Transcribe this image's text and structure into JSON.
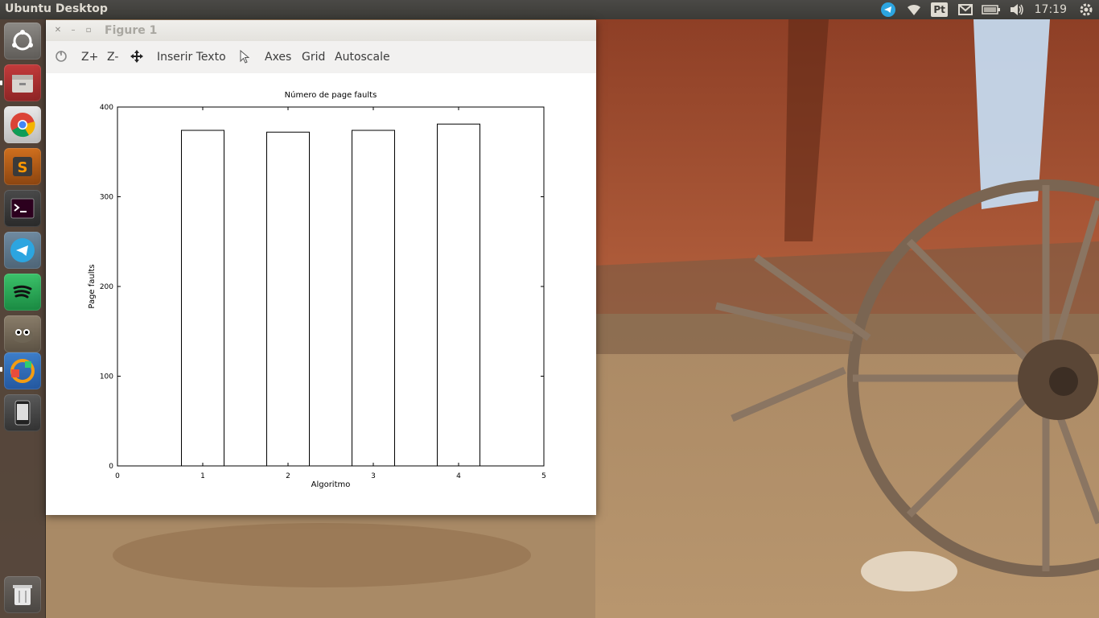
{
  "panel": {
    "title": "Ubuntu Desktop",
    "clock": "17:19",
    "indicators": [
      "telegram-icon",
      "wifi-icon",
      "pt-icon",
      "mail-icon",
      "battery-icon",
      "volume-icon",
      "gear-icon"
    ],
    "pt_label": "Pt"
  },
  "launcher": {
    "items": [
      "ubuntu-dash",
      "files",
      "chrome",
      "sublime-text",
      "terminal",
      "telegram",
      "spotify",
      "gimp",
      "software-updater",
      "android-device",
      "trash"
    ]
  },
  "window": {
    "title": "Figure 1"
  },
  "toolbar": {
    "zoom_in": "Z+",
    "zoom_out": "Z-",
    "insert_text": "Inserir Texto",
    "axes": "Axes",
    "grid": "Grid",
    "autoscale": "Autoscale"
  },
  "chart_data": {
    "type": "bar",
    "title": "Número de page faults",
    "xlabel": "Algoritmo",
    "ylabel": "Page faults",
    "categories": [
      1,
      2,
      3,
      4
    ],
    "values": [
      374,
      372,
      374,
      381
    ],
    "xlim": [
      0,
      5
    ],
    "ylim": [
      0,
      400
    ],
    "xticks": [
      "0",
      "1",
      "2",
      "3",
      "4",
      "5"
    ],
    "yticks": [
      "0",
      "100",
      "200",
      "300",
      "400"
    ],
    "grid": false,
    "bar_color": "#ffffff",
    "edge_color": "#000000"
  }
}
